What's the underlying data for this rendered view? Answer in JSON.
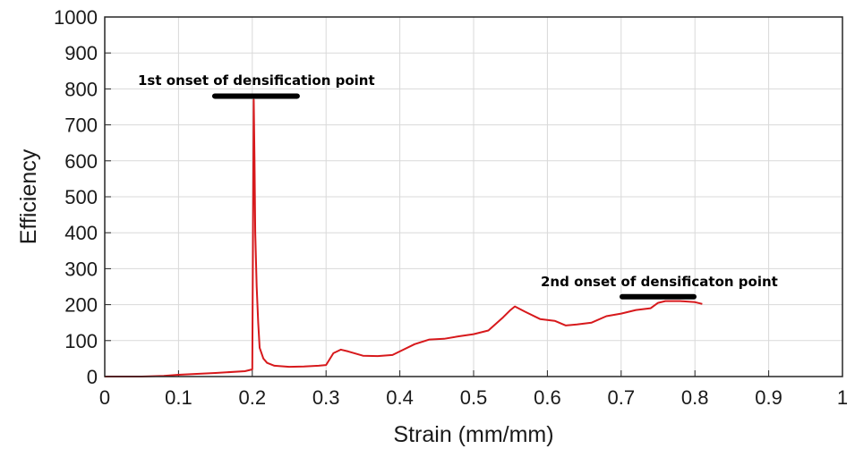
{
  "chart_data": {
    "type": "line",
    "title": "",
    "xlabel": "Strain (mm/mm)",
    "ylabel": "Efficiency",
    "xlim": [
      0,
      1
    ],
    "ylim": [
      0,
      1000
    ],
    "xticks": [
      "0",
      "0.1",
      "0.2",
      "0.3",
      "0.4",
      "0.5",
      "0.6",
      "0.7",
      "0.8",
      "0.9",
      "1"
    ],
    "yticks": [
      "0",
      "100",
      "200",
      "300",
      "400",
      "500",
      "600",
      "700",
      "800",
      "900",
      "1000"
    ],
    "grid": true,
    "series": [
      {
        "color": "#d7191c",
        "x": [
          0.0,
          0.05,
          0.08,
          0.1,
          0.15,
          0.19,
          0.2,
          0.201,
          0.202,
          0.203,
          0.204,
          0.206,
          0.208,
          0.21,
          0.215,
          0.22,
          0.23,
          0.25,
          0.27,
          0.29,
          0.3,
          0.31,
          0.32,
          0.33,
          0.35,
          0.37,
          0.39,
          0.4,
          0.42,
          0.44,
          0.46,
          0.48,
          0.5,
          0.52,
          0.54,
          0.55,
          0.556,
          0.57,
          0.59,
          0.61,
          0.625,
          0.64,
          0.66,
          0.68,
          0.7,
          0.72,
          0.74,
          0.75,
          0.76,
          0.78,
          0.8,
          0.81
        ],
        "y": [
          0,
          0,
          2,
          5,
          10,
          15,
          20,
          400,
          770,
          600,
          400,
          250,
          150,
          80,
          50,
          38,
          30,
          27,
          28,
          30,
          32,
          65,
          75,
          70,
          58,
          57,
          60,
          70,
          90,
          103,
          105,
          112,
          118,
          128,
          165,
          185,
          195,
          180,
          160,
          155,
          142,
          145,
          150,
          168,
          175,
          185,
          190,
          205,
          210,
          210,
          207,
          202
        ]
      }
    ],
    "annotations": [
      {
        "text": "1st onset of densification point",
        "x": 0.205,
        "y": 780
      },
      {
        "text": "2nd onset of densificaton point",
        "x": 0.75,
        "y": 222
      }
    ]
  }
}
